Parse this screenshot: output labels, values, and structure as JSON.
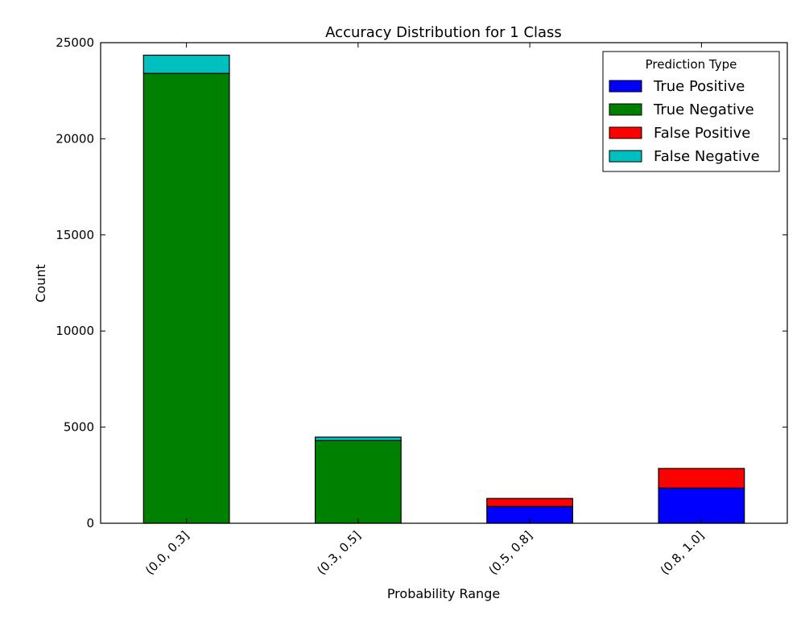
{
  "chart_data": {
    "type": "bar",
    "stacked": true,
    "title": "Accuracy Distribution for 1 Class",
    "xlabel": "Probability Range",
    "ylabel": "Count",
    "ylim": [
      0,
      25000
    ],
    "yticks": [
      0,
      5000,
      10000,
      15000,
      20000,
      25000
    ],
    "categories": [
      "(0.0, 0.3]",
      "(0.3, 0.5]",
      "(0.5, 0.8]",
      "(0.8, 1.0]"
    ],
    "legend": {
      "title": "Prediction Type",
      "position": "top-right"
    },
    "grid": false,
    "series": [
      {
        "name": "True Positive",
        "color": "#0000ff",
        "values": [
          0,
          0,
          870,
          1830
        ]
      },
      {
        "name": "True Negative",
        "color": "#008000",
        "values": [
          23400,
          4300,
          0,
          0
        ]
      },
      {
        "name": "False Positive",
        "color": "#ff0000",
        "values": [
          0,
          0,
          420,
          1020
        ]
      },
      {
        "name": "False Negative",
        "color": "#00bfbf",
        "values": [
          950,
          180,
          0,
          0
        ]
      }
    ]
  }
}
